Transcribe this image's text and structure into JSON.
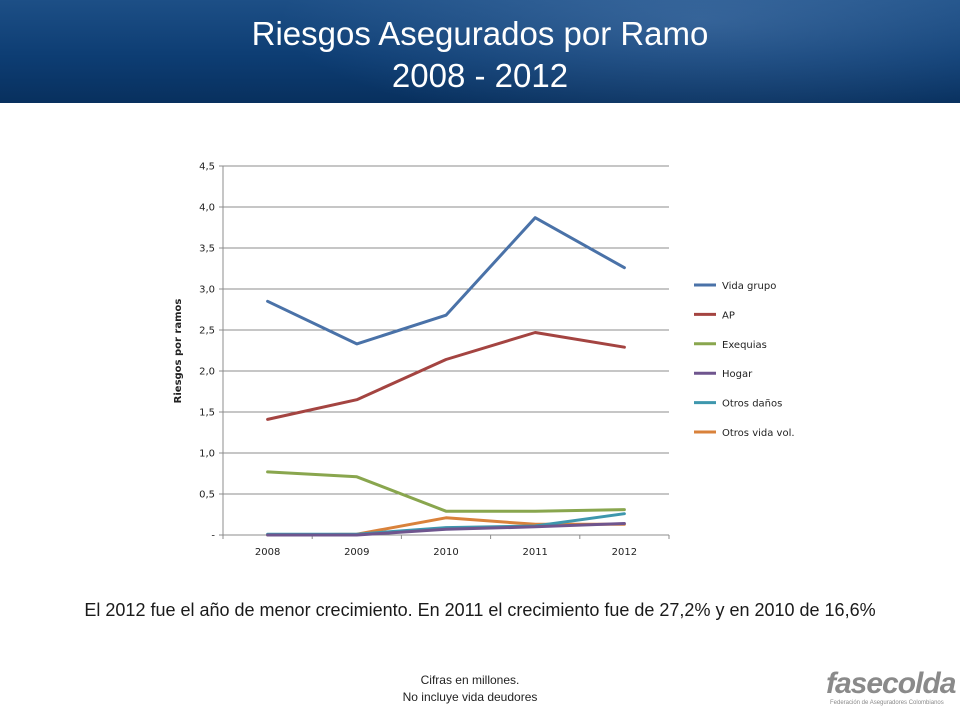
{
  "header": {
    "title_line1": "Riesgos Asegurados por Ramo",
    "title_line2": "2008 - 2012",
    "background": "#0d3d73"
  },
  "chart_data": {
    "type": "line",
    "categories": [
      "2008",
      "2009",
      "2010",
      "2011",
      "2012"
    ],
    "ylabel": "Riesgos  por ramos",
    "xlabel": "",
    "ylim": [
      0,
      4.5
    ],
    "yticks": [
      "-",
      "0,5",
      "1,0",
      "1,5",
      "2,0",
      "2,5",
      "3,0",
      "3,5",
      "4,0",
      "4,5"
    ],
    "grid": true,
    "legend_position": "right",
    "series": [
      {
        "name": "Vida grupo",
        "color": "#4a72a8",
        "values": [
          2.85,
          2.33,
          2.68,
          3.87,
          3.26
        ]
      },
      {
        "name": "AP",
        "color": "#a44441",
        "values": [
          1.41,
          1.65,
          2.14,
          2.47,
          2.29
        ]
      },
      {
        "name": "Exequias",
        "color": "#89a64e",
        "values": [
          0.77,
          0.71,
          0.29,
          0.29,
          0.31
        ]
      },
      {
        "name": "Hogar",
        "color": "#6f558e",
        "values": [
          0.0,
          0.0,
          0.07,
          0.1,
          0.14
        ]
      },
      {
        "name": "Otros daños",
        "color": "#3e97ad",
        "values": [
          0.01,
          0.01,
          0.09,
          0.11,
          0.26
        ]
      },
      {
        "name": "Otros vida vol.",
        "color": "#d9823b",
        "values": [
          0.0,
          0.01,
          0.21,
          0.13,
          0.13
        ]
      }
    ]
  },
  "caption": "El 2012 fue el año de menor crecimiento. En 2011 el crecimiento fue de 27,2% y en  2010 de 16,6%",
  "notes": {
    "line1": "Cifras en millones.",
    "line2": "No incluye vida deudores"
  },
  "logo": {
    "name": "fasecolda",
    "subtitle": "Federación de Aseguradores Colombianos"
  }
}
